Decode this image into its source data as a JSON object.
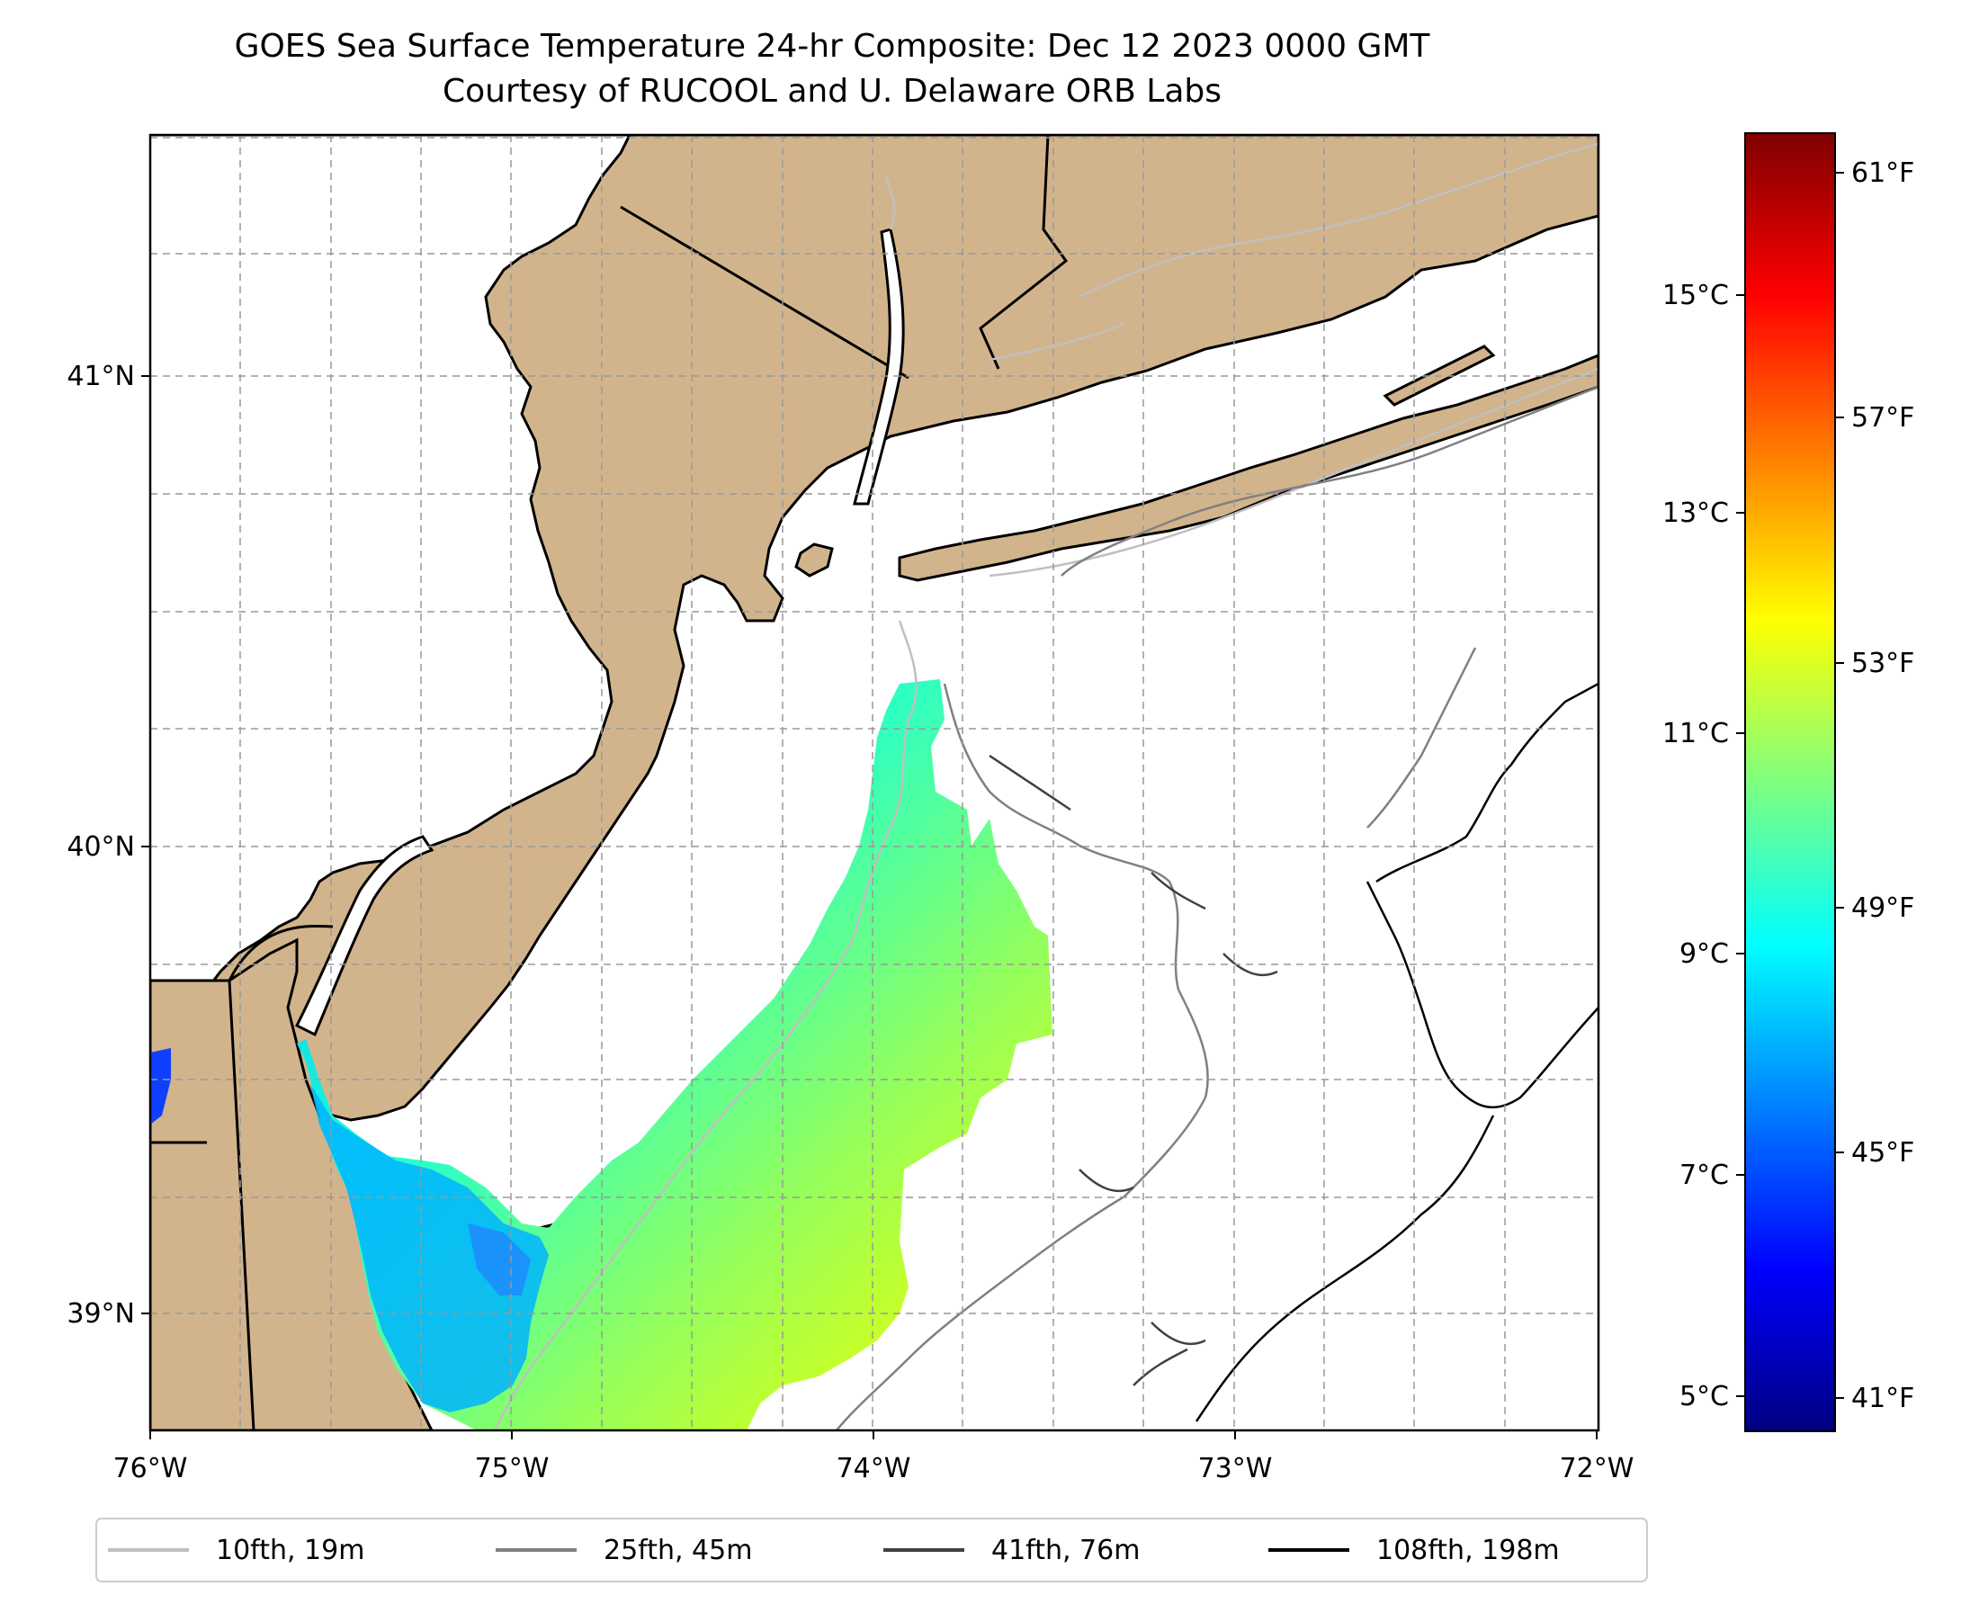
{
  "title": "GOES Sea Surface Temperature 24-hr Composite: Dec 12 2023 0000 GMT",
  "subtitle": "Courtesy of RUCOOL and U. Delaware ORB Labs",
  "map": {
    "lon_labels": [
      "76°W",
      "75°W",
      "74°W",
      "73°W",
      "72°W"
    ],
    "lat_labels": [
      "41°N",
      "40°N",
      "39°N"
    ],
    "extent": {
      "lon_min": -76.0,
      "lon_max": -72.0,
      "lat_min": 38.75,
      "lat_max": 41.5
    },
    "land_color": "#d2b48c",
    "grid": true
  },
  "colorbar": {
    "celsius_labels": [
      "15°C",
      "13°C",
      "11°C",
      "9°C",
      "7°C",
      "5°C"
    ],
    "fahrenheit_labels": [
      "61°F",
      "57°F",
      "53°F",
      "49°F",
      "45°F",
      "41°F"
    ],
    "colormap": "jet",
    "range_c": [
      4.6,
      16.5
    ]
  },
  "legend": {
    "items": [
      {
        "label": "10fth, 19m",
        "color": "#c0c0c0"
      },
      {
        "label": "25fth, 45m",
        "color": "#808080"
      },
      {
        "label": "41fth, 76m",
        "color": "#404040"
      },
      {
        "label": "108fth, 198m",
        "color": "#000000"
      }
    ]
  }
}
